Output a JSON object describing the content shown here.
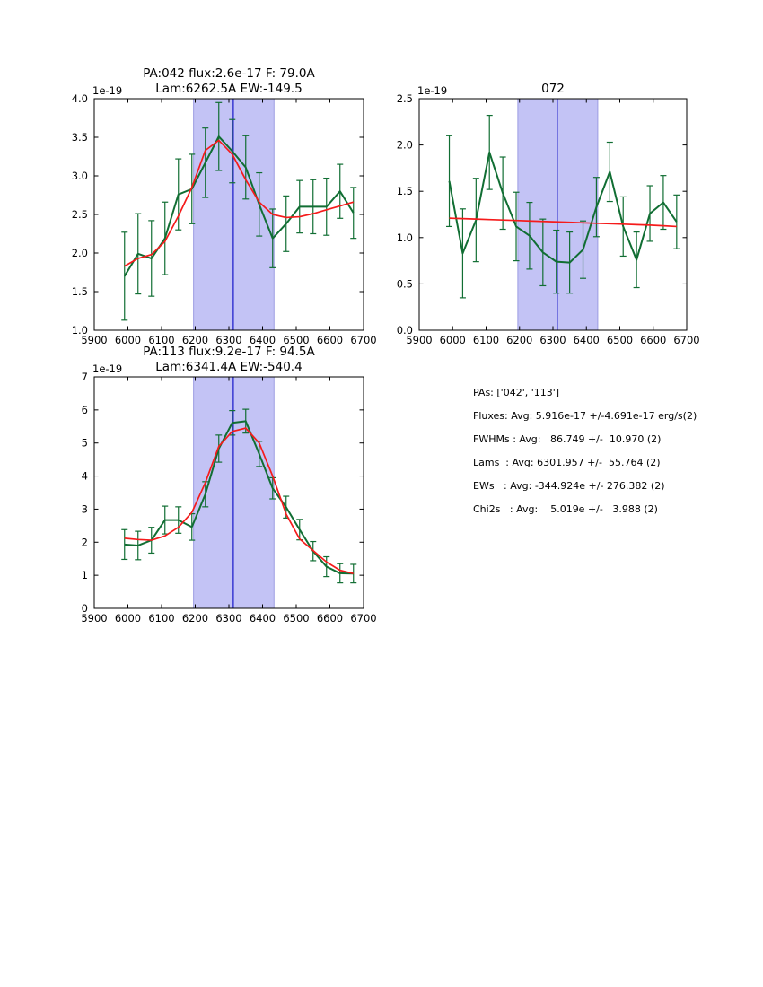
{
  "page": {
    "background": "#ffffff"
  },
  "colors": {
    "spectrum_green": "#116e33",
    "fit_red": "#f51b1b",
    "band_fill": "#c3c3f5",
    "band_edge": "#9c9ce2",
    "vline_blue": "#2424cc",
    "axis_black": "#000000"
  },
  "stats": {
    "lines": [
      "PAs: ['042', '113']",
      "Fluxes: Avg: 5.916e-17 +/-4.691e-17 erg/s(2)",
      "FWHMs : Avg:   86.749 +/-  10.970 (2)",
      "Lams  : Avg: 6301.957 +/-  55.764 (2)",
      "EWs   : Avg: -344.924e +/- 276.382 (2)",
      "Chi2s   : Avg:    5.019e +/-   3.988 (2)"
    ]
  },
  "chart_data": [
    {
      "type": "line",
      "title_lines": [
        "PA:042 flux:2.6e-17 F: 79.0A",
        "Lam:6262.5A EW:-149.5"
      ],
      "offset_label": "1e-19",
      "xlim": [
        5900,
        6700
      ],
      "ylim": [
        1.0,
        4.0
      ],
      "xticks": [
        5900,
        6000,
        6100,
        6200,
        6300,
        6400,
        6500,
        6600,
        6700
      ],
      "xtick_labels": [
        "5900",
        "6000",
        "6100",
        "6200",
        "6300",
        "6400",
        "6500",
        "6600",
        "6700"
      ],
      "yticks": [
        1.0,
        1.5,
        2.0,
        2.5,
        3.0,
        3.5,
        4.0
      ],
      "ytick_labels": [
        "1.0",
        "1.5",
        "2.0",
        "2.5",
        "3.0",
        "3.5",
        "4.0"
      ],
      "band": [
        6195,
        6434
      ],
      "vline": 6313,
      "x": [
        5990,
        6030,
        6070,
        6110,
        6150,
        6190,
        6230,
        6270,
        6310,
        6350,
        6390,
        6430,
        6470,
        6510,
        6550,
        6590,
        6630,
        6670
      ],
      "series": [
        {
          "name": "spectrum",
          "color_key": "spectrum_green",
          "values": [
            1.7,
            1.99,
            1.93,
            2.19,
            2.76,
            2.83,
            3.17,
            3.51,
            3.32,
            3.11,
            2.63,
            2.19,
            2.38,
            2.6,
            2.6,
            2.6,
            2.8,
            2.52
          ],
          "yerr": [
            0.57,
            0.52,
            0.49,
            0.47,
            0.46,
            0.45,
            0.45,
            0.44,
            0.41,
            0.41,
            0.41,
            0.38,
            0.36,
            0.34,
            0.35,
            0.37,
            0.35,
            0.33
          ]
        },
        {
          "name": "fit",
          "color_key": "fit_red",
          "values": [
            1.83,
            1.93,
            1.98,
            2.15,
            2.48,
            2.85,
            3.33,
            3.46,
            3.28,
            2.95,
            2.66,
            2.5,
            2.46,
            2.47,
            2.51,
            2.56,
            2.61,
            2.66
          ]
        }
      ]
    },
    {
      "type": "line",
      "title_lines": [
        "072"
      ],
      "offset_label": "1e-19",
      "xlim": [
        5900,
        6700
      ],
      "ylim": [
        0.0,
        2.5
      ],
      "xticks": [
        5900,
        6000,
        6100,
        6200,
        6300,
        6400,
        6500,
        6600,
        6700
      ],
      "xtick_labels": [
        "5900",
        "6000",
        "6100",
        "6200",
        "6300",
        "6400",
        "6500",
        "6600",
        "6700"
      ],
      "yticks": [
        0.0,
        0.5,
        1.0,
        1.5,
        2.0,
        2.5
      ],
      "ytick_labels": [
        "0.0",
        "0.5",
        "1.0",
        "1.5",
        "2.0",
        "2.5"
      ],
      "band": [
        6195,
        6434
      ],
      "vline": 6313,
      "x": [
        5990,
        6030,
        6070,
        6110,
        6150,
        6190,
        6230,
        6270,
        6310,
        6350,
        6390,
        6430,
        6470,
        6510,
        6550,
        6590,
        6630,
        6670
      ],
      "series": [
        {
          "name": "spectrum",
          "color_key": "spectrum_green",
          "values": [
            1.61,
            0.83,
            1.19,
            1.92,
            1.48,
            1.12,
            1.02,
            0.84,
            0.74,
            0.73,
            0.87,
            1.33,
            1.71,
            1.12,
            0.76,
            1.26,
            1.38,
            1.17
          ],
          "yerr": [
            0.49,
            0.48,
            0.45,
            0.4,
            0.39,
            0.37,
            0.36,
            0.36,
            0.34,
            0.33,
            0.31,
            0.32,
            0.32,
            0.32,
            0.3,
            0.3,
            0.29,
            0.29
          ]
        },
        {
          "name": "fit",
          "color_key": "fit_red",
          "values": [
            1.21,
            1.205,
            1.2,
            1.195,
            1.19,
            1.185,
            1.18,
            1.175,
            1.17,
            1.165,
            1.16,
            1.155,
            1.15,
            1.145,
            1.14,
            1.135,
            1.128,
            1.12
          ]
        }
      ]
    },
    {
      "type": "line",
      "title_lines": [
        "PA:113 flux:9.2e-17 F: 94.5A",
        "Lam:6341.4A EW:-540.4"
      ],
      "offset_label": "1e-19",
      "xlim": [
        5900,
        6700
      ],
      "ylim": [
        0,
        7
      ],
      "xticks": [
        5900,
        6000,
        6100,
        6200,
        6300,
        6400,
        6500,
        6600,
        6700
      ],
      "xtick_labels": [
        "5900",
        "6000",
        "6100",
        "6200",
        "6300",
        "6400",
        "6500",
        "6600",
        "6700"
      ],
      "yticks": [
        0,
        1,
        2,
        3,
        4,
        5,
        6,
        7
      ],
      "ytick_labels": [
        "0",
        "1",
        "2",
        "3",
        "4",
        "5",
        "6",
        "7"
      ],
      "band": [
        6195,
        6434
      ],
      "vline": 6313,
      "x": [
        5990,
        6030,
        6070,
        6110,
        6150,
        6190,
        6230,
        6270,
        6310,
        6350,
        6390,
        6430,
        6470,
        6510,
        6550,
        6590,
        6630,
        6670
      ],
      "series": [
        {
          "name": "spectrum",
          "color_key": "spectrum_green",
          "values": [
            1.93,
            1.9,
            2.06,
            2.67,
            2.67,
            2.46,
            3.45,
            4.83,
            5.61,
            5.66,
            4.67,
            3.63,
            3.06,
            2.38,
            1.73,
            1.26,
            1.06,
            1.05
          ],
          "yerr": [
            0.45,
            0.43,
            0.39,
            0.42,
            0.4,
            0.4,
            0.38,
            0.41,
            0.37,
            0.36,
            0.38,
            0.32,
            0.33,
            0.31,
            0.29,
            0.3,
            0.29,
            0.28
          ]
        },
        {
          "name": "fit",
          "color_key": "fit_red",
          "values": [
            2.12,
            2.08,
            2.06,
            2.19,
            2.45,
            2.9,
            3.8,
            4.9,
            5.35,
            5.45,
            5.0,
            4.0,
            2.85,
            2.1,
            1.75,
            1.4,
            1.15,
            1.05
          ]
        }
      ]
    }
  ]
}
